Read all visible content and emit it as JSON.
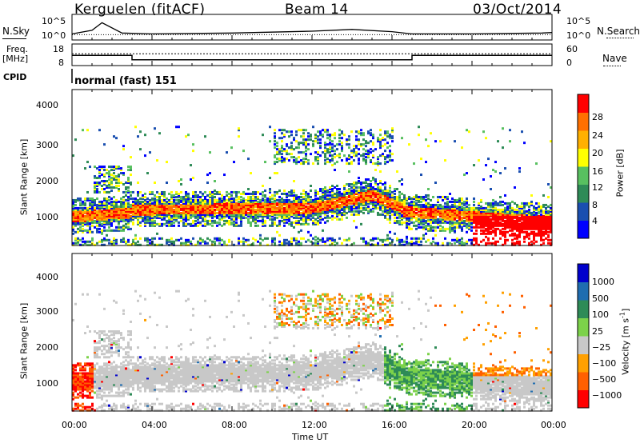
{
  "header": {
    "station": "Kerguelen (fitACF)",
    "beam": "Beam 14",
    "date": "03/Oct/2014"
  },
  "strip": {
    "nsky_label": "N.Sky",
    "nsearch_label": "N.Search",
    "freq_label_line1": "Freq.",
    "freq_label_line2": "[MHz]",
    "nave_label": "Nave",
    "cpid_label": "CPID",
    "cpid_value": "normal (fast) 151",
    "noise_ticks_left": [
      "10^5",
      "10^0"
    ],
    "noise_ticks_right": [
      "10^5",
      "10^0"
    ],
    "freq_ticks": [
      "18",
      "8"
    ],
    "nave_ticks": [
      "60",
      "0"
    ]
  },
  "chart_data": [
    {
      "type": "line",
      "panel": "noise",
      "series": [
        {
          "name": "N.Sky",
          "x": [
            "00:00",
            "01:00",
            "01:30",
            "02:30",
            "04:00",
            "08:00",
            "12:00",
            "14:00",
            "16:00",
            "17:00",
            "20:00",
            "23:30",
            "24:00"
          ],
          "values": [
            1.0,
            1.8,
            3.5,
            1.2,
            1.0,
            1.2,
            1.6,
            2.0,
            1.5,
            1.0,
            1.0,
            1.2,
            1.3
          ]
        },
        {
          "name": "N.Search",
          "x": [
            "00:00",
            "24:00"
          ],
          "values": [
            1.0,
            1.0
          ]
        }
      ],
      "ylim": [
        0,
        5
      ]
    },
    {
      "type": "line",
      "panel": "frequency",
      "series": [
        {
          "name": "Freq.",
          "x": [
            "00:00",
            "03:00",
            "03:00",
            "17:00",
            "17:00",
            "24:00"
          ],
          "values": [
            12.5,
            12.5,
            10.2,
            10.2,
            12.5,
            12.5
          ]
        },
        {
          "name": "Nave",
          "x": [
            "00:00",
            "24:00"
          ],
          "values": [
            13.3,
            13.3
          ]
        }
      ],
      "ylim": [
        8,
        18
      ]
    },
    {
      "type": "heatmap",
      "panel": "power",
      "ylabel": "Slant Range [km]",
      "colorbar_label": "Power [dB]",
      "colorbar_ticks": [
        "28",
        "24",
        "20",
        "16",
        "12",
        "8",
        "4"
      ],
      "y_ticks": [
        "4000",
        "3000",
        "2000",
        "1000"
      ],
      "ylim": [
        200,
        4600
      ]
    },
    {
      "type": "heatmap",
      "panel": "velocity",
      "ylabel": "Slant Range [km]",
      "colorbar_label": "Velocity [m s",
      "colorbar_label_sup": "-1",
      "colorbar_label_end": "]",
      "colorbar_ticks": [
        "1000",
        "500",
        "100",
        "25",
        "−25",
        "−100",
        "−500",
        "−1000"
      ],
      "y_ticks": [
        "4000",
        "3000",
        "2000",
        "1000"
      ],
      "ylim": [
        200,
        4600
      ]
    }
  ],
  "xaxis": {
    "ticks": [
      "00:00",
      "04:00",
      "08:00",
      "12:00",
      "16:00",
      "20:00",
      "00:00"
    ],
    "label": "Time UT"
  },
  "colors": {
    "power_scale": [
      "#0000ff",
      "#1a4fb0",
      "#2e8b57",
      "#58c060",
      "#ffff00",
      "#ffb000",
      "#ff7000",
      "#ff0000"
    ],
    "velocity_scale": [
      "#0000cc",
      "#1f6db0",
      "#2e8b57",
      "#7cd24a",
      "#c8c8c8",
      "#ffa000",
      "#ff6000",
      "#ff0000"
    ]
  }
}
